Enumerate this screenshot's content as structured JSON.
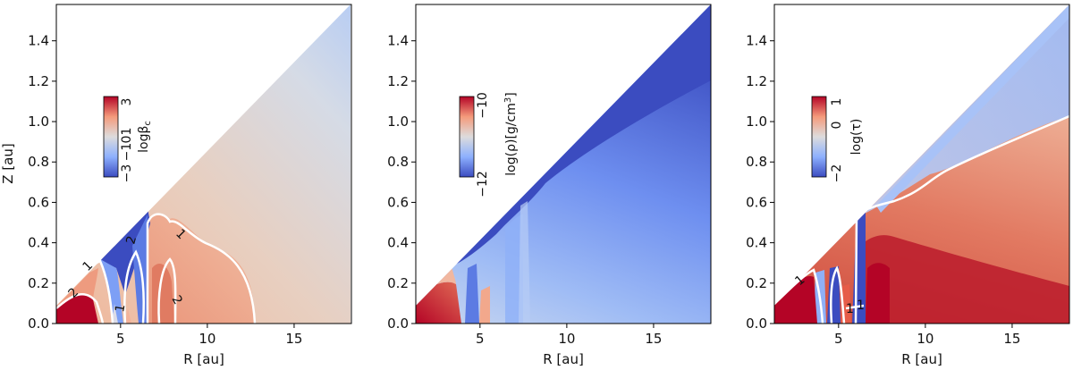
{
  "chart_data": [
    {
      "type": "heatmap",
      "panel": "left",
      "xlabel": "R [au]",
      "ylabel": "Z [au]",
      "xlim": [
        1.3,
        18.3
      ],
      "ylim": [
        0,
        1.58
      ],
      "xticks": [
        "5",
        "10",
        "15"
      ],
      "yticks": [
        "0.0",
        "0.2",
        "0.4",
        "0.6",
        "0.8",
        "1.0",
        "1.2",
        "1.4"
      ],
      "colorbar": {
        "label": "logβ_c",
        "label_main": "logβ",
        "label_sub": "c",
        "ticks": [
          "−3",
          "−1",
          "0",
          "1",
          "3"
        ],
        "range": [
          -3,
          3
        ],
        "colormap": "coolwarm"
      },
      "contours": [
        {
          "level": "2",
          "labels": [
            "2",
            "2",
            "2"
          ]
        },
        {
          "level": "1",
          "labels": [
            "1",
            "1",
            "1"
          ]
        }
      ]
    },
    {
      "type": "heatmap",
      "panel": "middle",
      "xlabel": "R [au]",
      "ylabel": "",
      "xlim": [
        1.3,
        18.3
      ],
      "ylim": [
        0,
        1.58
      ],
      "xticks": [
        "5",
        "10",
        "15"
      ],
      "yticks": [
        "0.0",
        "0.2",
        "0.4",
        "0.6",
        "0.8",
        "1.0",
        "1.2",
        "1.4"
      ],
      "colorbar": {
        "label": "log(ρ)[g/cm³]",
        "label_main": "log(ρ)[g/cm",
        "label_sup": "3",
        "label_end": "]",
        "ticks": [
          "−12",
          "−10"
        ],
        "range": [
          -12.5,
          -9.5
        ],
        "colormap": "coolwarm"
      },
      "contours": []
    },
    {
      "type": "heatmap",
      "panel": "right",
      "xlabel": "R [au]",
      "ylabel": "",
      "xlim": [
        1.3,
        18.3
      ],
      "ylim": [
        0,
        1.58
      ],
      "xticks": [
        "5",
        "10",
        "15"
      ],
      "yticks": [
        "0.0",
        "0.2",
        "0.4",
        "0.6",
        "0.8",
        "1.0",
        "1.2",
        "1.4"
      ],
      "colorbar": {
        "label": "log(τ)",
        "ticks": [
          "−2",
          "0",
          "1"
        ],
        "range": [
          -2,
          1
        ],
        "colormap": "coolwarm"
      },
      "contours": [
        {
          "level": "1",
          "labels": [
            "1",
            "1",
            "1"
          ]
        }
      ]
    }
  ],
  "colors": {
    "deep_red": "#b40426",
    "red": "#dd5f4b",
    "salmon": "#f49a7b",
    "light_salmon": "#f2c3ab",
    "neutral": "#dddcdc",
    "light_blue": "#b7cff9",
    "blue": "#8db0fe",
    "mid_blue": "#6788ee",
    "deep_blue": "#3b4cc0",
    "contour": "#ffffff"
  }
}
